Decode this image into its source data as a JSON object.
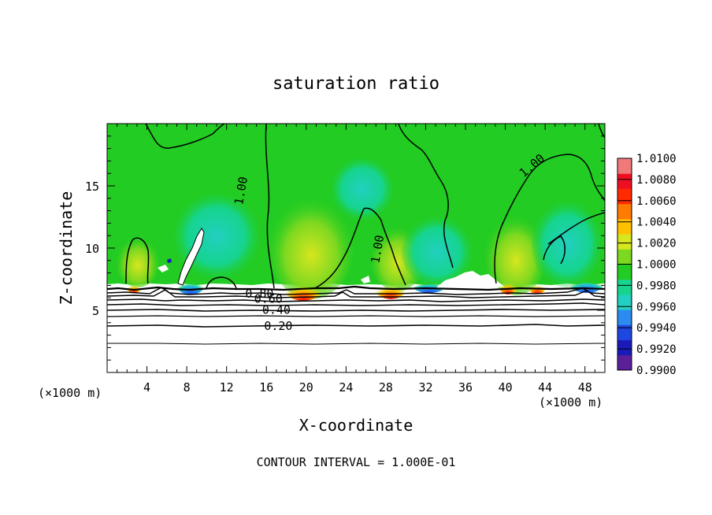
{
  "chart_data": {
    "type": "heatmap",
    "title": "saturation ratio",
    "xlabel": "X-coordinate",
    "ylabel": "Z-coordinate",
    "x_unit_left": "(×1000 m)",
    "x_unit_right": "(×1000 m)",
    "footer": "CONTOUR INTERVAL = 1.000E-01",
    "xlim": [
      0,
      50
    ],
    "ylim": [
      0,
      20
    ],
    "x_ticks": [
      4,
      8,
      12,
      16,
      20,
      24,
      28,
      32,
      36,
      40,
      44,
      48
    ],
    "x_tick_labels": [
      "4",
      "8",
      "12",
      "16",
      "20",
      "24",
      "28",
      "32",
      "36",
      "40",
      "44",
      "48"
    ],
    "y_ticks": [
      5,
      10,
      15
    ],
    "y_tick_labels": [
      "5",
      "10",
      "15"
    ],
    "colorbar": {
      "min": 0.99,
      "max": 1.01,
      "labels": [
        "1.0100",
        "1.0080",
        "1.0060",
        "1.0040",
        "1.0020",
        "1.0000",
        "0.9980",
        "0.9960",
        "0.9940",
        "0.9920",
        "0.9900"
      ],
      "colors": [
        "#5c1f9a",
        "#1a1ab8",
        "#1e46e0",
        "#2b8bf0",
        "#22cfc0",
        "#16d48e",
        "#22cc22",
        "#7dd820",
        "#d6e61f",
        "#ffc000",
        "#ff7a00",
        "#ff2a00",
        "#ee1020",
        "#f07a7a"
      ]
    },
    "contour_labels": [
      {
        "text": "1.00",
        "x": 13.5,
        "y": 14.6,
        "angle": -80
      },
      {
        "text": "1.00",
        "x": 27.2,
        "y": 9.9,
        "angle": -80
      },
      {
        "text": "1.00",
        "x": 42.7,
        "y": 16.6,
        "angle": -40
      },
      {
        "text": "0.80",
        "x": 15.3,
        "y": 6.3,
        "angle": 0
      },
      {
        "text": "0.60",
        "x": 16.2,
        "y": 5.9,
        "angle": 0
      },
      {
        "text": "0.40",
        "x": 17.0,
        "y": 5.0,
        "angle": 0
      },
      {
        "text": "0.20",
        "x": 17.2,
        "y": 3.7,
        "angle": 0
      }
    ],
    "contour_levels": [
      0.2,
      0.3,
      0.4,
      0.5,
      0.6,
      0.7,
      0.8,
      0.9,
      1.0
    ],
    "grid": false
  }
}
